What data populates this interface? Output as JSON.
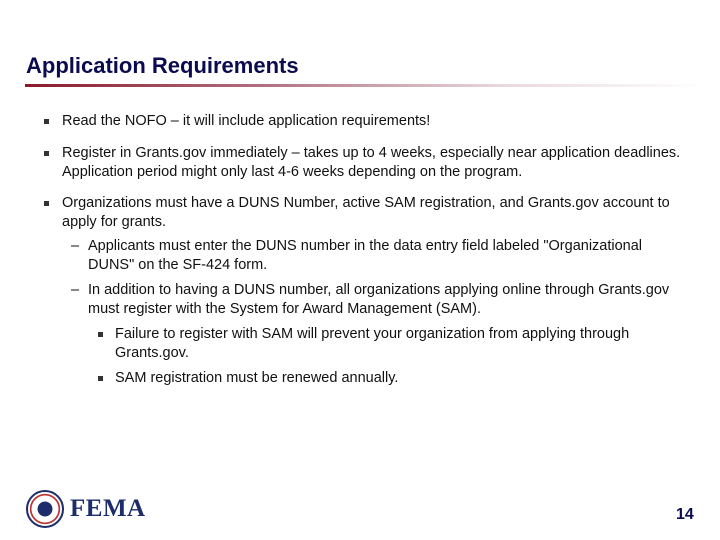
{
  "title": "Application Requirements",
  "accent_colors": {
    "title": "#0b0b4f",
    "rule": "#8b1a2a"
  },
  "bullets": [
    {
      "text": "Read the NOFO – it will include application requirements!"
    },
    {
      "text": "Register in Grants.gov immediately – takes up to 4 weeks, especially near application deadlines. Application period might only last 4-6 weeks depending on the program."
    },
    {
      "text": "Organizations must have a DUNS Number, active SAM registration, and Grants.gov account to apply for grants."
    }
  ],
  "sub_bullets": [
    {
      "marker": "–",
      "text": "Applicants must enter the DUNS number in the data entry field labeled \"Organizational DUNS\" on the SF-424 form."
    },
    {
      "marker": "–",
      "text": "In addition to having a DUNS number, all organizations applying online through Grants.gov must register with the System for Award Management (SAM)."
    }
  ],
  "sub_sub_bullets": [
    {
      "text": "Failure to register with SAM will prevent your organization from applying through Grants.gov."
    },
    {
      "text": "SAM registration must be renewed annually."
    }
  ],
  "footer": {
    "logo_text": "FEMA",
    "page_number": "14"
  }
}
